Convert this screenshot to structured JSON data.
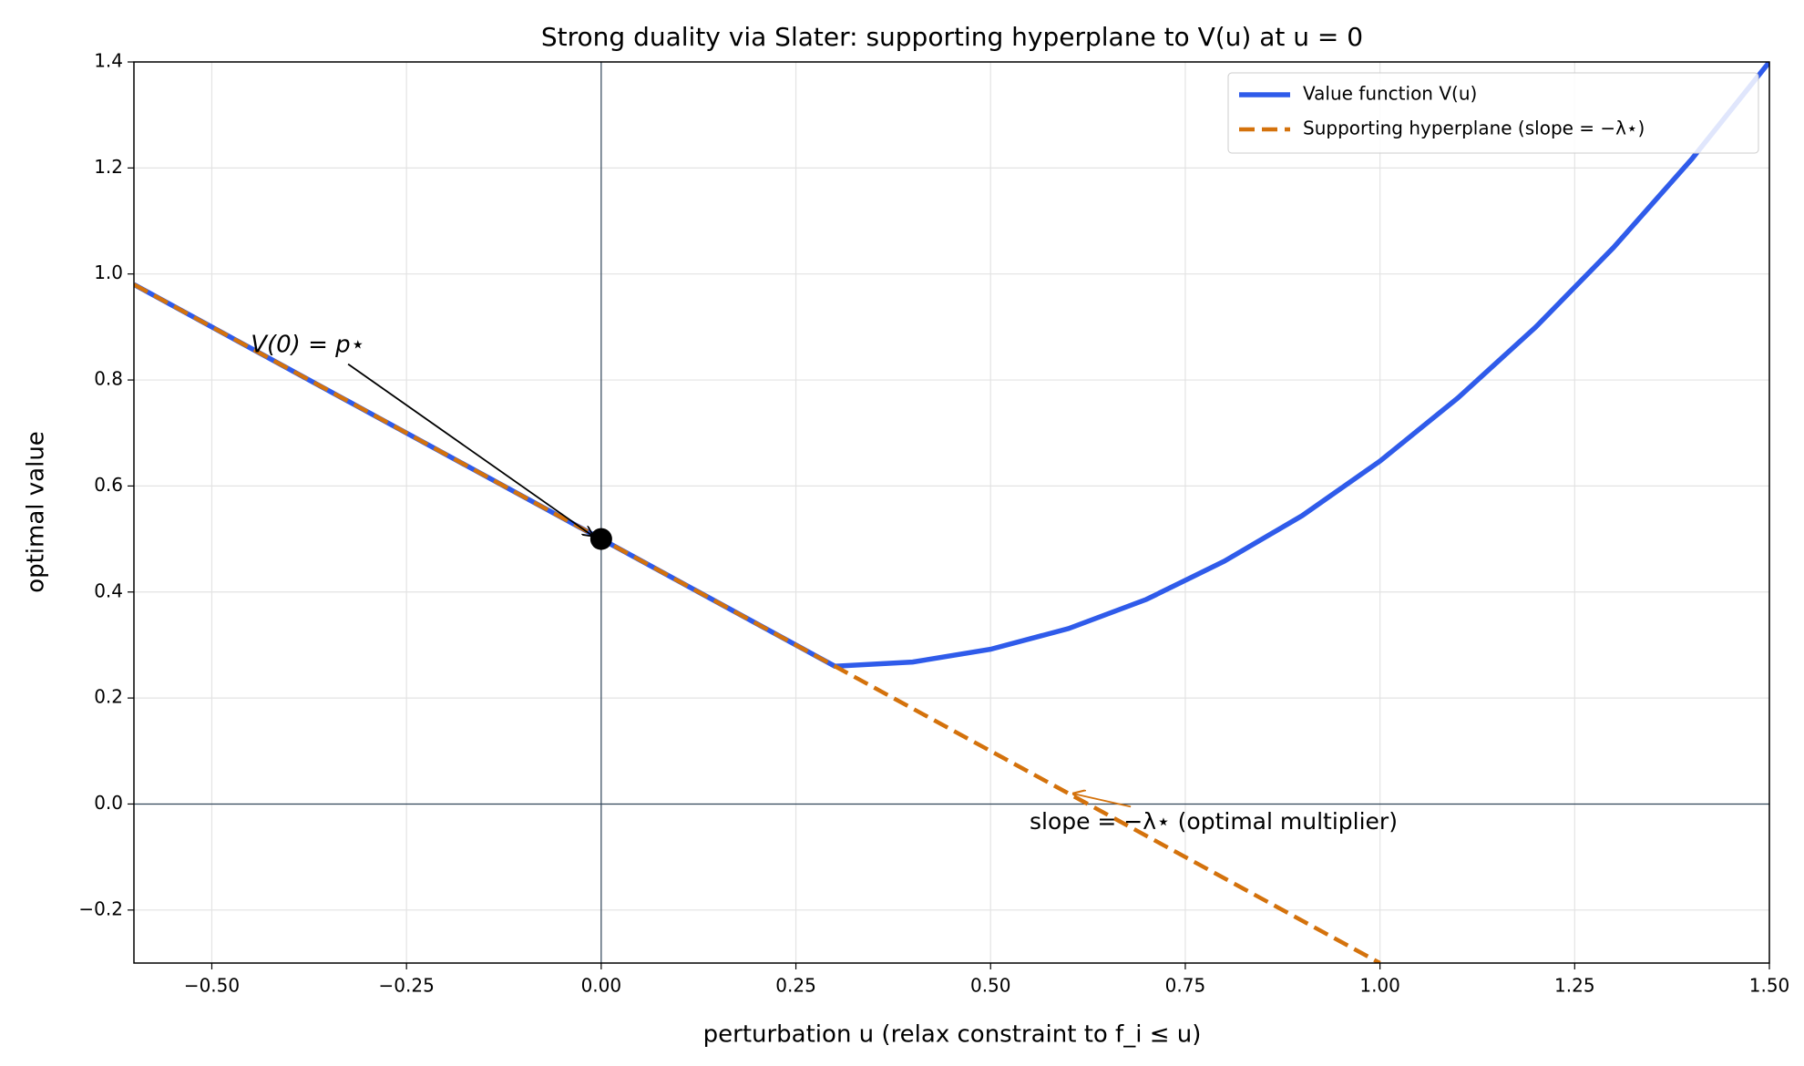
{
  "chart_data": {
    "type": "line",
    "title": "Strong duality via Slater: supporting hyperplane to V(u) at u = 0",
    "xlabel": "perturbation u (relax constraint to f_i ≤ u)",
    "ylabel": "optimal value",
    "series": [
      {
        "name": "Value function V(u)",
        "color": "#2f5bea",
        "style": "solid",
        "x": [
          -0.6,
          -0.3,
          0,
          0.3,
          0.4,
          0.5,
          0.6,
          0.7,
          0.8,
          0.9,
          1.0,
          1.1,
          1.2,
          1.3,
          1.4,
          1.5
        ],
        "values": [
          0.98,
          0.74,
          0.5,
          0.26,
          0.268,
          0.292,
          0.331,
          0.386,
          0.458,
          0.544,
          0.647,
          0.766,
          0.9,
          1.05,
          1.216,
          1.4
        ]
      },
      {
        "name": "Supporting hyperplane (slope = −λ⋆)",
        "color": "#d4720c",
        "style": "dashed",
        "x": [
          -0.6,
          1.0
        ],
        "values": [
          0.98,
          -0.3
        ]
      }
    ],
    "point": {
      "x": 0,
      "value": 0.5,
      "color": "#000000"
    },
    "annotations": [
      {
        "text": "V(0) = p⋆",
        "color": "#000000"
      },
      {
        "text": "slope = −λ⋆ (optimal multiplier)",
        "color": "#d4720c"
      }
    ],
    "xlim": [
      -0.6,
      1.5
    ],
    "ylim": [
      -0.3,
      1.4
    ],
    "xticks": [
      {
        "value": -0.5,
        "label": "−0.50"
      },
      {
        "value": -0.25,
        "label": "−0.25"
      },
      {
        "value": 0,
        "label": "0.00"
      },
      {
        "value": 0.25,
        "label": "0.25"
      },
      {
        "value": 0.5,
        "label": "0.50"
      },
      {
        "value": 0.75,
        "label": "0.75"
      },
      {
        "value": 1,
        "label": "1.00"
      },
      {
        "value": 1.25,
        "label": "1.25"
      },
      {
        "value": 1.5,
        "label": "1.50"
      }
    ],
    "yticks": [
      {
        "value": -0.2,
        "label": "−0.2"
      },
      {
        "value": 0,
        "label": "0.0"
      },
      0.2,
      0.4,
      0.6,
      0.8,
      {
        "value": 1,
        "label": "1.0"
      },
      1.2,
      1.4
    ],
    "grid": true,
    "legend": "upper right"
  }
}
